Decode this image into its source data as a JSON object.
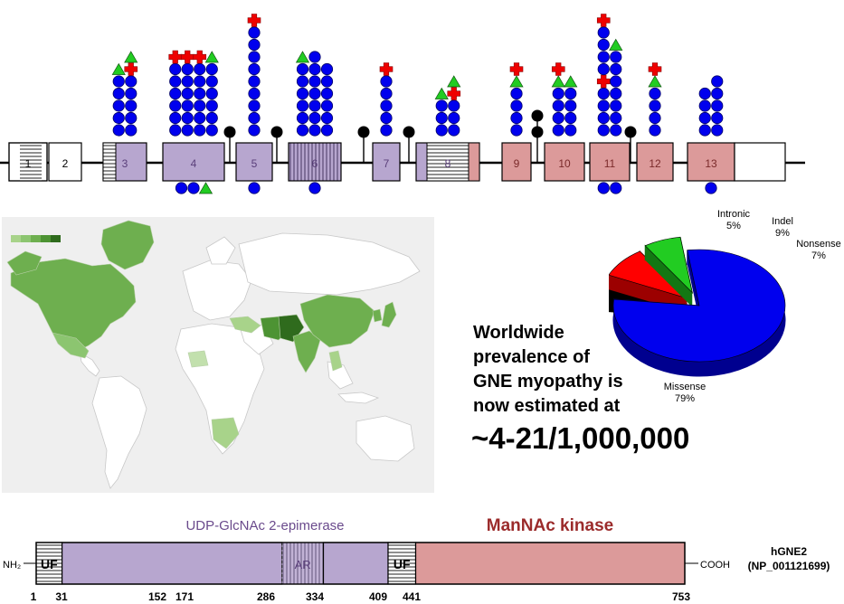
{
  "exons": [
    {
      "label": "1",
      "fill": "#ffffff",
      "hatch": "h",
      "coding": false
    },
    {
      "label": "2",
      "fill": "#ffffff",
      "hatch": "",
      "coding": false
    },
    {
      "label": "3",
      "fill": "#b7a6cf",
      "hatch": "h-left",
      "coding": true
    },
    {
      "label": "4",
      "fill": "#b7a6cf",
      "hatch": "",
      "coding": true
    },
    {
      "label": "5",
      "fill": "#b7a6cf",
      "hatch": "",
      "coding": true
    },
    {
      "label": "6",
      "fill": "#b7a6cf",
      "hatch": "v",
      "coding": true
    },
    {
      "label": "7",
      "fill": "#b7a6cf",
      "hatch": "",
      "coding": true
    },
    {
      "label": "8",
      "fill": "#b7a6cf",
      "hatch": "h-mid",
      "coding": true
    },
    {
      "label": "9",
      "fill": "#dc9a9a",
      "hatch": "",
      "coding": true
    },
    {
      "label": "10",
      "fill": "#dc9a9a",
      "hatch": "",
      "coding": true
    },
    {
      "label": "11",
      "fill": "#dc9a9a",
      "hatch": "",
      "coding": true
    },
    {
      "label": "12",
      "fill": "#dc9a9a",
      "hatch": "",
      "coding": true
    },
    {
      "label": "13",
      "fill": "#dc9a9a",
      "hatch": "",
      "coding": true
    }
  ],
  "mutation_legend": {
    "missense": "blue-circle",
    "nonsense": "red-cross",
    "indel_or_other": "green-triangle",
    "intronic": "black-lollipop"
  },
  "mutations_above": [
    {
      "exon": "3",
      "columns": [
        [
          "circle",
          "circle",
          "circle",
          "circle",
          "circle",
          "triangle"
        ],
        [
          "circle",
          "circle",
          "circle",
          "circle",
          "circle",
          "cross",
          "triangle"
        ]
      ]
    },
    {
      "exon": "4",
      "columns": [
        [
          "circle",
          "circle",
          "circle",
          "circle",
          "circle",
          "circle",
          "cross"
        ],
        [
          "circle",
          "circle",
          "circle",
          "circle",
          "circle",
          "circle",
          "cross"
        ],
        [
          "circle",
          "circle",
          "circle",
          "circle",
          "circle",
          "circle",
          "cross"
        ],
        [
          "circle",
          "circle",
          "circle",
          "circle",
          "circle",
          "circle",
          "triangle"
        ]
      ]
    },
    {
      "exon": "5",
      "columns": [
        [
          "circle",
          "circle",
          "circle",
          "circle",
          "circle",
          "circle",
          "circle",
          "circle",
          "circle",
          "cross"
        ]
      ]
    },
    {
      "exon": "6",
      "columns": [
        [
          "circle",
          "circle",
          "circle",
          "circle",
          "circle",
          "circle",
          "triangle"
        ],
        [
          "circle",
          "circle",
          "circle",
          "circle",
          "circle",
          "circle",
          "circle"
        ],
        [
          "circle",
          "circle",
          "circle",
          "circle",
          "circle",
          "circle"
        ]
      ]
    },
    {
      "exon": "7",
      "columns": [
        [
          "circle",
          "circle",
          "circle",
          "circle",
          "circle",
          "cross"
        ]
      ]
    },
    {
      "exon": "8",
      "columns": [
        [
          "circle",
          "circle",
          "circle",
          "triangle"
        ],
        [
          "circle",
          "circle",
          "circle",
          "cross",
          "triangle"
        ]
      ]
    },
    {
      "exon": "9",
      "columns": [
        [
          "circle",
          "circle",
          "circle",
          "circle",
          "triangle",
          "cross"
        ]
      ]
    },
    {
      "exon": "10",
      "columns": [
        [
          "circle",
          "circle",
          "circle",
          "circle",
          "triangle",
          "cross"
        ],
        [
          "circle",
          "circle",
          "circle",
          "circle",
          "triangle"
        ]
      ]
    },
    {
      "exon": "11",
      "columns": [
        [
          "circle",
          "circle",
          "circle",
          "circle",
          "cross",
          "circle",
          "circle",
          "circle",
          "circle",
          "cross"
        ],
        [
          "circle",
          "circle",
          "circle",
          "circle",
          "circle",
          "circle",
          "circle",
          "triangle"
        ]
      ]
    },
    {
      "exon": "12",
      "columns": [
        [
          "circle",
          "circle",
          "circle",
          "circle",
          "triangle",
          "cross"
        ]
      ]
    },
    {
      "exon": "13",
      "columns": [
        [
          "circle",
          "circle",
          "circle",
          "circle"
        ],
        [
          "circle",
          "circle",
          "circle",
          "circle",
          "circle"
        ]
      ]
    }
  ],
  "mutations_below": [
    {
      "exon": "4",
      "items": [
        "circle",
        "circle",
        "triangle"
      ]
    },
    {
      "exon": "5",
      "items": [
        "circle"
      ]
    },
    {
      "exon": "6",
      "items": [
        "circle"
      ]
    },
    {
      "exon": "11",
      "items": [
        "circle",
        "circle"
      ]
    },
    {
      "exon": "13",
      "items": [
        "circle"
      ]
    }
  ],
  "intronic_variants": [
    {
      "between": "4-5",
      "count": 1
    },
    {
      "between": "5-6",
      "count": 1
    },
    {
      "between": "6-7",
      "count": 1
    },
    {
      "between": "7-8",
      "count": 1
    },
    {
      "between": "9-10",
      "count": 2
    },
    {
      "between": "11-12",
      "count": 1
    }
  ],
  "map": {
    "scale_colors": [
      "#a8d38a",
      "#8cc570",
      "#6eaf4f",
      "#4d9333",
      "#2f6b1d"
    ],
    "shaded_regions": [
      "north-america",
      "greenland",
      "iran",
      "afghanistan-pakistan",
      "india",
      "china",
      "japan",
      "korea",
      "middle-east",
      "thailand",
      "southern-africa"
    ]
  },
  "chart_data": {
    "type": "pie",
    "style": "3d-exploded",
    "slices": [
      {
        "label": "Missense",
        "value_label": "79%",
        "value": 79,
        "color": "#0000ee"
      },
      {
        "label": "Intronic",
        "value_label": "5%",
        "value": 5,
        "color": "#000000"
      },
      {
        "label": "Indel",
        "value_label": "9%",
        "value": 9,
        "color": "#ff0000"
      },
      {
        "label": "Nonsense",
        "value_label": "7%",
        "value": 7,
        "color": "#22cc22"
      }
    ]
  },
  "prevalence": {
    "lines": [
      "Worldwide",
      "prevalence of",
      "GNE myopathy is",
      "now estimated at"
    ],
    "value": "~4-21/1,000,000"
  },
  "protein": {
    "nterm": "NH₂",
    "cterm": "COOH",
    "name": "hGNE2",
    "accession": "(NP_001121699)",
    "length": 753,
    "domains": [
      {
        "label": "UF",
        "start": 1,
        "end": 31,
        "kind": "hatched"
      },
      {
        "label": "",
        "start": 31,
        "end": 286,
        "kind": "epimerase"
      },
      {
        "label": "AR",
        "start": 286,
        "end": 334,
        "kind": "vhatched"
      },
      {
        "label": "",
        "start": 334,
        "end": 409,
        "kind": "epimerase"
      },
      {
        "label": "UF",
        "start": 409,
        "end": 441,
        "kind": "hatched"
      },
      {
        "label": "",
        "start": 441,
        "end": 753,
        "kind": "kinase"
      }
    ],
    "domain_titles": [
      {
        "text": "UDP-GlcNAc 2-epimerase",
        "color": "#6a4a8c"
      },
      {
        "text": "ManNAc kinase",
        "color": "#9b2b2b"
      }
    ],
    "ticks": [
      "1",
      "31",
      "152",
      "171",
      "286",
      "334",
      "409",
      "441",
      "753"
    ],
    "tick_values": [
      1,
      31,
      152,
      171,
      286,
      334,
      409,
      441,
      753
    ]
  }
}
